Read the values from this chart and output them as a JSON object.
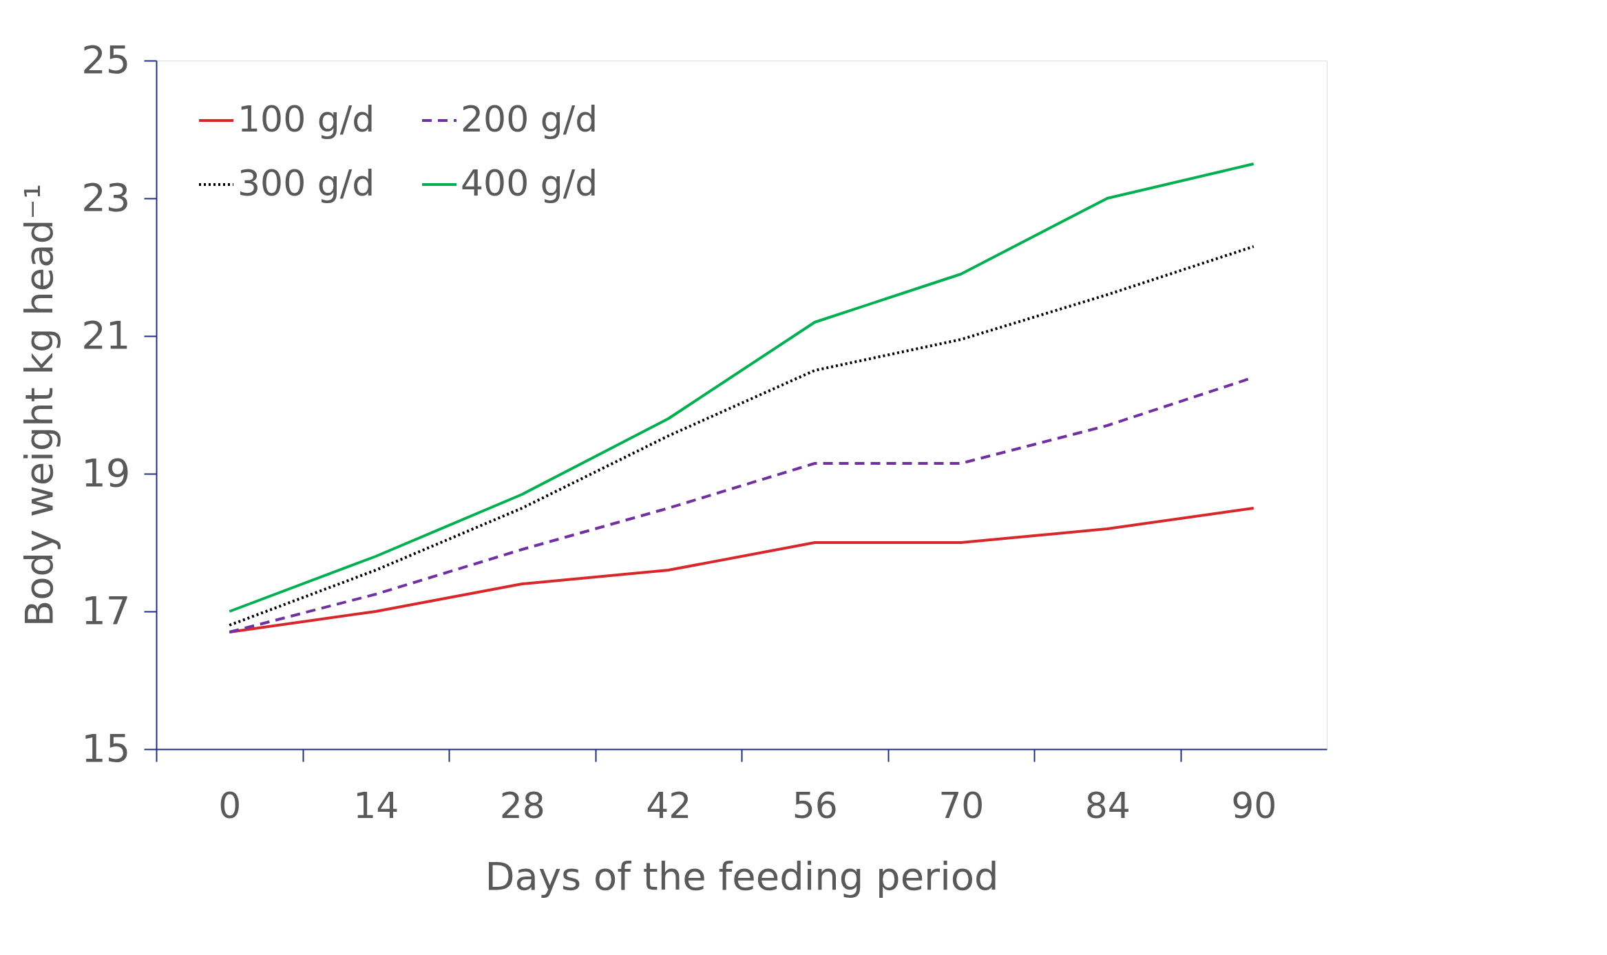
{
  "chart_data": {
    "type": "line",
    "xlabel": "Days of the feeding period",
    "ylabel": "Body weight kg head⁻¹",
    "categories": [
      "0",
      "14",
      "28",
      "42",
      "56",
      "70",
      "84",
      "90"
    ],
    "ylim": [
      15,
      25
    ],
    "yticks": [
      15,
      17,
      19,
      21,
      23,
      25
    ],
    "grid": false,
    "legend": "top left",
    "marker": "none",
    "series": [
      {
        "name": "100 g/d",
        "color": "#d9262b",
        "line_style": "solid",
        "values": [
          16.7,
          17.0,
          17.4,
          17.6,
          18.0,
          18.0,
          18.2,
          18.5
        ]
      },
      {
        "name": "200 g/d",
        "color": "#7030a0",
        "line_style": "dashed",
        "values": [
          16.7,
          17.25,
          17.9,
          18.5,
          19.15,
          19.15,
          19.7,
          20.4
        ]
      },
      {
        "name": "300 g/d",
        "color": "#000000",
        "line_style": "dotted",
        "values": [
          16.8,
          17.6,
          18.5,
          19.55,
          20.5,
          20.95,
          21.6,
          22.3
        ]
      },
      {
        "name": "400 g/d",
        "color": "#00b050",
        "line_style": "solid",
        "values": [
          17.0,
          17.8,
          18.7,
          19.8,
          21.2,
          21.9,
          23.0,
          23.5
        ]
      }
    ]
  }
}
